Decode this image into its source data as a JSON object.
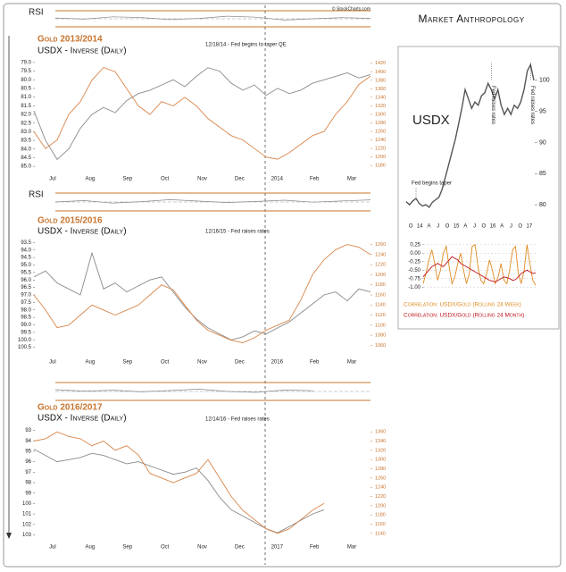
{
  "header": {
    "brand": "Market Anthropology",
    "source": "© StockCharts.com"
  },
  "chart_data": [
    {
      "type": "line",
      "title": "Gold 2013/2014",
      "subtitle": "USDX - Inverse (Daily)",
      "annotation": "12/18/14 - Fed begins to taper QE",
      "rsi_label": "RSI",
      "rsi": [
        55,
        48,
        62,
        58,
        45,
        52,
        66,
        60,
        42,
        50,
        57,
        53
      ],
      "rsi_ylim": [
        0,
        100
      ],
      "xtick_labels": [
        "Jul",
        "Aug",
        "Sep",
        "Oct",
        "Nov",
        "Dec",
        "2014",
        "Feb",
        "Mar"
      ],
      "ylim": [
        85.2,
        78.8
      ],
      "yticks": [
        {
          "value": 79,
          "label": "79.0"
        },
        {
          "value": 79.5,
          "label": "79.5"
        },
        {
          "value": 80,
          "label": "80.0"
        },
        {
          "value": 80.5,
          "label": "80.5"
        },
        {
          "value": 81,
          "label": "81.0"
        },
        {
          "value": 81.5,
          "label": "81.5"
        },
        {
          "value": 82,
          "label": "82.0"
        },
        {
          "value": 82.5,
          "label": "82.5"
        },
        {
          "value": 83,
          "label": "83.0"
        },
        {
          "value": 83.5,
          "label": "83.5"
        },
        {
          "value": 84,
          "label": "84.0"
        },
        {
          "value": 84.5,
          "label": "84.5"
        },
        {
          "value": 85,
          "label": "85.0"
        }
      ],
      "y2lim": [
        1170,
        1430
      ],
      "y2ticks": [
        1180,
        1200,
        1220,
        1240,
        1260,
        1280,
        1300,
        1320,
        1340,
        1360,
        1380,
        1400,
        1420
      ],
      "series": [
        {
          "name": "USDX - Inverse",
          "color": "#8a8a8a",
          "values": [
            81.8,
            83.5,
            84.6,
            84.0,
            82.8,
            82.0,
            81.6,
            81.9,
            81.2,
            80.8,
            80.6,
            80.3,
            80.0,
            80.4,
            79.8,
            79.3,
            79.5,
            80.2,
            80.6,
            80.3,
            80.9,
            80.5,
            80.8,
            80.6,
            80.2,
            80.0,
            79.8,
            79.6,
            79.9,
            79.7
          ]
        },
        {
          "name": "Gold",
          "color": "#d9854a",
          "axis": "y2",
          "values": [
            1260,
            1220,
            1240,
            1300,
            1330,
            1380,
            1410,
            1400,
            1360,
            1320,
            1300,
            1330,
            1320,
            1340,
            1320,
            1290,
            1270,
            1250,
            1240,
            1220,
            1200,
            1195,
            1210,
            1230,
            1250,
            1260,
            1300,
            1330,
            1370,
            1390
          ]
        }
      ]
    },
    {
      "type": "line",
      "title": "Gold 2015/2016",
      "subtitle": "USDX - Inverse (Daily)",
      "annotation": "12/16/15 - Fed raises rates",
      "rsi_label": "RSI",
      "rsi": [
        50,
        58,
        44,
        52,
        63,
        55,
        47,
        53,
        60,
        49,
        56,
        62
      ],
      "rsi_ylim": [
        0,
        100
      ],
      "xtick_labels": [
        "Jul",
        "Aug",
        "Sep",
        "Oct",
        "Nov",
        "Dec",
        "2016",
        "Feb",
        "Mar"
      ],
      "ylim": [
        100.7,
        93.3
      ],
      "yticks": [
        93.5,
        {
          "value": 94,
          "label": "94.0"
        },
        94.5,
        {
          "value": 95,
          "label": "95.0"
        },
        95.5,
        {
          "value": 96,
          "label": "96.0"
        },
        96.5,
        {
          "value": 97,
          "label": "97.0"
        },
        97.5,
        {
          "value": 98,
          "label": "98.0"
        },
        98.5,
        {
          "value": 99,
          "label": "99.0"
        },
        99.5,
        {
          "value": 100,
          "label": "100.0"
        },
        100.5
      ],
      "y2lim": [
        1050,
        1270
      ],
      "y2ticks": [
        1060,
        1080,
        1100,
        1120,
        1140,
        1160,
        1180,
        1200,
        1220,
        1240,
        1260
      ],
      "series": [
        {
          "name": "USDX - Inverse",
          "color": "#8a8a8a",
          "values": [
            95.8,
            95.4,
            96.2,
            96.6,
            97.0,
            94.2,
            96.6,
            96.2,
            96.8,
            96.4,
            96.0,
            95.8,
            96.8,
            97.8,
            98.6,
            99.2,
            99.6,
            100.0,
            99.8,
            99.4,
            99.6,
            99.2,
            98.8,
            98.2,
            97.6,
            97.0,
            96.8,
            97.4,
            96.6,
            96.8
          ]
        },
        {
          "name": "Gold",
          "color": "#d9854a",
          "axis": "y2",
          "values": [
            1160,
            1130,
            1095,
            1100,
            1120,
            1140,
            1130,
            1120,
            1130,
            1140,
            1160,
            1180,
            1170,
            1140,
            1110,
            1090,
            1080,
            1070,
            1065,
            1075,
            1090,
            1100,
            1110,
            1150,
            1200,
            1230,
            1250,
            1260,
            1255,
            1240
          ]
        }
      ]
    },
    {
      "type": "line",
      "title": "Gold 2016/2017",
      "subtitle": "USDX - Inverse (Daily)",
      "annotation": "12/14/16 - Fed raises rates",
      "rsi": [
        60,
        52,
        57,
        48,
        55,
        63,
        50,
        45,
        58,
        54,
        null,
        null
      ],
      "rsi_ylim": [
        0,
        100
      ],
      "xtick_labels": [
        "Jul",
        "Aug",
        "Sep",
        "Oct",
        "Nov",
        "Dec",
        "2017",
        "Feb",
        "Mar"
      ],
      "ylim": [
        103.3,
        92.7
      ],
      "yticks": [
        93,
        94,
        95,
        96,
        97,
        98,
        99,
        100,
        101,
        102,
        103
      ],
      "y2lim": [
        1130,
        1370
      ],
      "y2ticks": [
        1140,
        1160,
        1180,
        1200,
        1220,
        1240,
        1260,
        1280,
        1300,
        1320,
        1340,
        1360
      ],
      "series": [
        {
          "name": "USDX - Inverse",
          "color": "#8a8a8a",
          "values": [
            94.8,
            95.4,
            96.0,
            95.8,
            95.6,
            95.2,
            95.4,
            95.8,
            96.2,
            96.0,
            96.4,
            96.8,
            97.2,
            97.0,
            96.6,
            97.8,
            99.4,
            100.6,
            101.2,
            101.8,
            102.4,
            102.8,
            102.2,
            101.6,
            101.0,
            100.6,
            null,
            null,
            null,
            null
          ]
        },
        {
          "name": "Gold",
          "color": "#d9854a",
          "axis": "y2",
          "values": [
            1340,
            1345,
            1360,
            1350,
            1345,
            1330,
            1340,
            1320,
            1330,
            1310,
            1270,
            1260,
            1250,
            1260,
            1270,
            1300,
            1260,
            1220,
            1190,
            1170,
            1150,
            1140,
            1150,
            1170,
            1190,
            1205,
            null,
            null,
            null,
            null
          ]
        }
      ]
    },
    {
      "type": "line",
      "title": "USDX",
      "annotations": [
        "Fed begins taper",
        "Fed raises rates",
        "Fed raises rates"
      ],
      "xtick_labels": [
        "O",
        "14",
        "A",
        "J",
        "O",
        "15",
        "A",
        "J",
        "O",
        "16",
        "A",
        "J",
        "O",
        "17"
      ],
      "ylim": [
        78,
        104
      ],
      "yticks": [
        80,
        85,
        90,
        95,
        100
      ],
      "series": [
        {
          "name": "USDX",
          "color": "#555555",
          "values": [
            80.5,
            80.0,
            80.6,
            81.0,
            80.2,
            79.8,
            80.0,
            79.6,
            80.4,
            80.8,
            81.2,
            82.5,
            84.5,
            86.5,
            88.5,
            90.5,
            93.0,
            95.5,
            98.5,
            97.0,
            95.5,
            96.5,
            96.0,
            97.5,
            98.0,
            99.5,
            98.5,
            97.0,
            98.5,
            96.0,
            94.5,
            95.5,
            94.5,
            96.0,
            95.5,
            96.5,
            98.5,
            101.5,
            102.5,
            100.0
          ]
        }
      ]
    },
    {
      "type": "line",
      "ylim": [
        -1.1,
        0.35
      ],
      "yticks": [
        {
          "value": 0.25,
          "label": "0.25"
        },
        {
          "value": 0,
          "label": "0.00"
        },
        {
          "value": -0.25,
          "label": "-0.25"
        },
        {
          "value": -0.5,
          "label": "-0.50"
        },
        {
          "value": -0.75,
          "label": "-0.75"
        },
        {
          "value": -1,
          "label": "-1.00"
        }
      ],
      "series": [
        {
          "name": "Correlation: USDX/Gold (Rolling 24 Week)",
          "color": "#e08a1e",
          "values": [
            -0.9,
            -0.6,
            -0.2,
            0.1,
            -0.3,
            -0.8,
            -0.5,
            0.0,
            0.2,
            -0.4,
            -0.9,
            -0.7,
            -0.3,
            0.0,
            -0.5,
            -0.9,
            -0.6,
            0.2,
            0.25,
            -0.4,
            -0.8,
            -0.9,
            -0.6,
            -0.2,
            -0.5,
            -0.9,
            -0.7,
            -0.3,
            -0.8,
            -0.9,
            -0.5,
            0.1,
            0.2,
            -0.6,
            -0.9,
            -0.5,
            0.25,
            -0.3,
            -0.8,
            -0.95
          ]
        },
        {
          "name": "Correlation: USDX/Gold (Rolling 24 Month)",
          "color": "#c0151b",
          "values": [
            -0.7,
            -0.6,
            -0.5,
            -0.4,
            -0.35,
            -0.3,
            -0.35,
            -0.4,
            -0.3,
            -0.2,
            -0.1,
            -0.15,
            -0.2,
            -0.3,
            -0.35,
            -0.4,
            -0.45,
            -0.5,
            -0.55,
            -0.6,
            -0.65,
            -0.7,
            -0.75,
            -0.8,
            -0.82,
            -0.85,
            -0.8,
            -0.75,
            -0.7,
            -0.72,
            -0.75,
            -0.8,
            -0.78,
            -0.7,
            -0.6,
            -0.55,
            -0.5,
            -0.55,
            -0.6,
            -0.58
          ]
        }
      ]
    }
  ]
}
